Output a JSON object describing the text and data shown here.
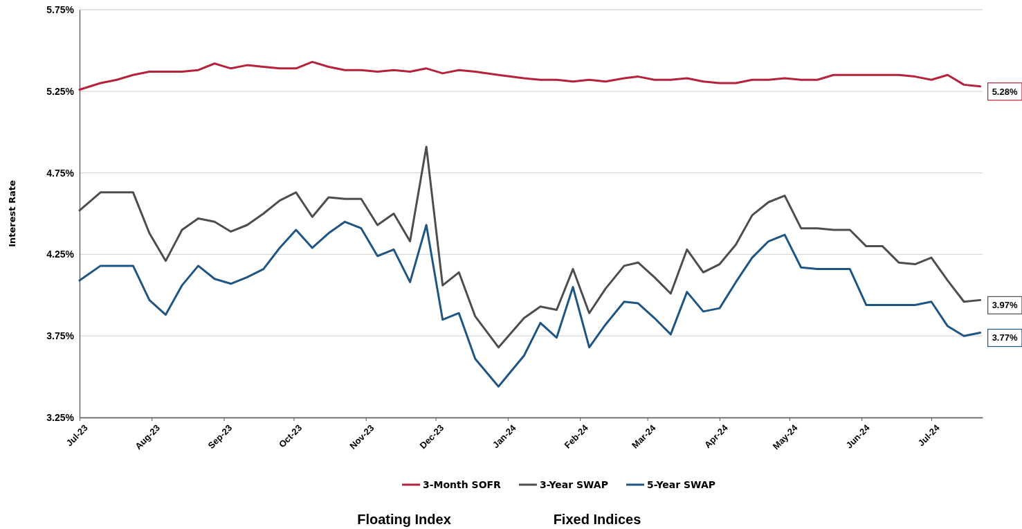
{
  "chart_data": {
    "type": "line",
    "ylabel": "Interest Rate",
    "x": [
      "2023-07-01",
      "2023-07-10",
      "2023-07-17",
      "2023-07-24",
      "2023-07-31",
      "2023-08-07",
      "2023-08-14",
      "2023-08-21",
      "2023-08-28",
      "2023-09-04",
      "2023-09-11",
      "2023-09-18",
      "2023-09-25",
      "2023-10-02",
      "2023-10-09",
      "2023-10-16",
      "2023-10-23",
      "2023-10-30",
      "2023-11-06",
      "2023-11-13",
      "2023-11-20",
      "2023-11-27",
      "2023-12-04",
      "2023-12-11",
      "2023-12-18",
      "2023-12-28",
      "2024-01-08",
      "2024-01-15",
      "2024-01-22",
      "2024-01-29",
      "2024-02-05",
      "2024-02-12",
      "2024-02-20",
      "2024-02-26",
      "2024-03-04",
      "2024-03-11",
      "2024-03-18",
      "2024-03-25",
      "2024-04-01",
      "2024-04-08",
      "2024-04-15",
      "2024-04-22",
      "2024-04-29",
      "2024-05-06",
      "2024-05-13",
      "2024-05-20",
      "2024-05-27",
      "2024-06-03",
      "2024-06-10",
      "2024-06-17",
      "2024-06-24",
      "2024-07-01",
      "2024-07-08",
      "2024-07-15",
      "2024-07-22"
    ],
    "series": [
      {
        "name": "3-Month SOFR",
        "color": "#b5223a",
        "values": [
          5.26,
          5.3,
          5.32,
          5.35,
          5.37,
          5.37,
          5.37,
          5.38,
          5.42,
          5.39,
          5.41,
          5.4,
          5.39,
          5.39,
          5.43,
          5.4,
          5.38,
          5.38,
          5.37,
          5.38,
          5.37,
          5.39,
          5.36,
          5.38,
          5.37,
          5.35,
          5.33,
          5.32,
          5.32,
          5.31,
          5.32,
          5.31,
          5.33,
          5.34,
          5.32,
          5.32,
          5.33,
          5.31,
          5.3,
          5.3,
          5.32,
          5.32,
          5.33,
          5.32,
          5.32,
          5.35,
          5.35,
          5.35,
          5.35,
          5.35,
          5.34,
          5.32,
          5.35,
          5.29,
          5.28
        ],
        "value_labels": [
          null,
          null,
          null,
          null,
          null,
          null,
          null,
          null,
          null,
          null,
          null,
          null,
          null,
          null,
          null,
          null,
          null,
          null,
          null,
          null,
          null,
          null,
          null,
          null,
          null,
          null,
          null,
          null,
          null,
          null,
          null,
          null,
          null,
          null,
          null,
          null,
          null,
          null,
          null,
          null,
          null,
          null,
          null,
          null,
          null,
          null,
          null,
          null,
          null,
          null,
          null,
          null,
          null,
          null,
          "5.28%"
        ]
      },
      {
        "name": "3-Year SWAP",
        "color": "#4d4d4d",
        "values": [
          4.52,
          4.63,
          4.63,
          4.63,
          4.38,
          4.21,
          4.4,
          4.47,
          4.45,
          4.39,
          4.43,
          4.5,
          4.58,
          4.63,
          4.48,
          4.6,
          4.59,
          4.59,
          4.43,
          4.5,
          4.33,
          4.91,
          4.06,
          4.14,
          3.87,
          3.68,
          3.86,
          3.93,
          3.91,
          4.16,
          3.89,
          4.04,
          4.18,
          4.2,
          4.11,
          4.01,
          4.28,
          4.14,
          4.19,
          4.31,
          4.49,
          4.57,
          4.61,
          4.41,
          4.41,
          4.4,
          4.4,
          4.3,
          4.3,
          4.2,
          4.19,
          4.23,
          4.09,
          3.96,
          3.97
        ],
        "value_labels": [
          null,
          null,
          null,
          null,
          null,
          null,
          null,
          null,
          null,
          null,
          null,
          null,
          null,
          null,
          null,
          null,
          null,
          null,
          null,
          null,
          null,
          null,
          null,
          null,
          null,
          null,
          null,
          null,
          null,
          null,
          null,
          null,
          null,
          null,
          null,
          null,
          null,
          null,
          null,
          null,
          null,
          null,
          null,
          null,
          null,
          null,
          null,
          null,
          null,
          null,
          null,
          null,
          null,
          null,
          "3.97%"
        ]
      },
      {
        "name": "5-Year SWAP",
        "color": "#1f5582",
        "values": [
          4.09,
          4.18,
          4.18,
          4.18,
          3.97,
          3.88,
          4.06,
          4.18,
          4.1,
          4.07,
          4.11,
          4.16,
          4.29,
          4.4,
          4.29,
          4.38,
          4.45,
          4.41,
          4.24,
          4.28,
          4.08,
          4.43,
          3.85,
          3.89,
          3.61,
          3.44,
          3.63,
          3.83,
          3.74,
          4.05,
          3.68,
          3.82,
          3.96,
          3.95,
          3.86,
          3.76,
          4.02,
          3.9,
          3.92,
          4.08,
          4.23,
          4.33,
          4.37,
          4.17,
          4.16,
          4.16,
          4.16,
          3.94,
          3.94,
          3.94,
          3.94,
          3.96,
          3.81,
          3.75,
          3.77
        ],
        "value_labels": [
          null,
          null,
          null,
          null,
          null,
          null,
          null,
          null,
          null,
          null,
          null,
          null,
          null,
          null,
          null,
          null,
          null,
          null,
          null,
          null,
          null,
          null,
          null,
          null,
          null,
          null,
          null,
          null,
          null,
          null,
          null,
          null,
          null,
          null,
          null,
          null,
          null,
          null,
          null,
          null,
          null,
          null,
          null,
          null,
          null,
          null,
          null,
          null,
          null,
          null,
          null,
          null,
          null,
          null,
          "3.77%"
        ]
      }
    ],
    "xlim": [
      "2023-07-01",
      "2024-07-23"
    ],
    "xticks": [
      {
        "value": "2023-07-01",
        "label": "Jul-23"
      },
      {
        "value": "2023-08-01",
        "label": "Aug-23"
      },
      {
        "value": "2023-09-01",
        "label": "Sep-23"
      },
      {
        "value": "2023-10-01",
        "label": "Oct-23"
      },
      {
        "value": "2023-11-01",
        "label": "Nov-23"
      },
      {
        "value": "2023-12-01",
        "label": "Dec-23"
      },
      {
        "value": "2024-01-01",
        "label": "Jan-24"
      },
      {
        "value": "2024-02-01",
        "label": "Feb-24"
      },
      {
        "value": "2024-03-01",
        "label": "Mar-24"
      },
      {
        "value": "2024-04-01",
        "label": "Apr-24"
      },
      {
        "value": "2024-05-01",
        "label": "May-24"
      },
      {
        "value": "2024-06-01",
        "label": "Jun-24"
      },
      {
        "value": "2024-07-01",
        "label": "Jul-24"
      }
    ],
    "ylim": [
      3.25,
      5.75
    ],
    "yticks": [
      {
        "value": 3.25,
        "label": "3.25%"
      },
      {
        "value": 3.75,
        "label": "3.75%"
      },
      {
        "value": 4.25,
        "label": "4.25%"
      },
      {
        "value": 4.75,
        "label": "4.75%"
      },
      {
        "value": 5.25,
        "label": "5.25%"
      },
      {
        "value": 5.75,
        "label": "5.75%"
      }
    ],
    "grid": "y",
    "legend": "bottom",
    "marker": "none",
    "line_style": "solid",
    "annotations": [
      "Floating Index",
      "Fixed Indices"
    ]
  }
}
